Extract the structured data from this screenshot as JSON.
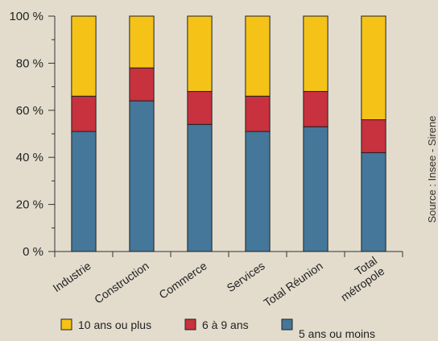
{
  "chart_data": {
    "type": "bar",
    "stacked": true,
    "categories": [
      "Industrie",
      "Construction",
      "Commerce",
      "Services",
      "Total Réunion",
      "Total métropole"
    ],
    "category_lines": [
      [
        "Industrie"
      ],
      [
        "Construction"
      ],
      [
        "Commerce"
      ],
      [
        "Services"
      ],
      [
        "Total Réunion"
      ],
      [
        "Total",
        "métropole"
      ]
    ],
    "series": [
      {
        "name": "5 ans ou moins",
        "color": "#447799",
        "values": [
          51,
          64,
          54,
          51,
          53,
          42
        ]
      },
      {
        "name": "6 à 9 ans",
        "color": "#c8313e",
        "values": [
          15,
          14,
          14,
          15,
          15,
          14
        ]
      },
      {
        "name": "10 ans ou plus",
        "color": "#f5c317",
        "values": [
          34,
          22,
          32,
          34,
          32,
          44
        ]
      }
    ],
    "ylim": [
      0,
      100
    ],
    "yticks": [
      "0 %",
      "20 %",
      "40 %",
      "60 %",
      "80 %",
      "100 %"
    ],
    "ytick_values": [
      0,
      20,
      40,
      60,
      80,
      100
    ],
    "legend_order": [
      2,
      1,
      0
    ],
    "legend_position": "bottom",
    "source": "Source : Insee - Sirene"
  }
}
